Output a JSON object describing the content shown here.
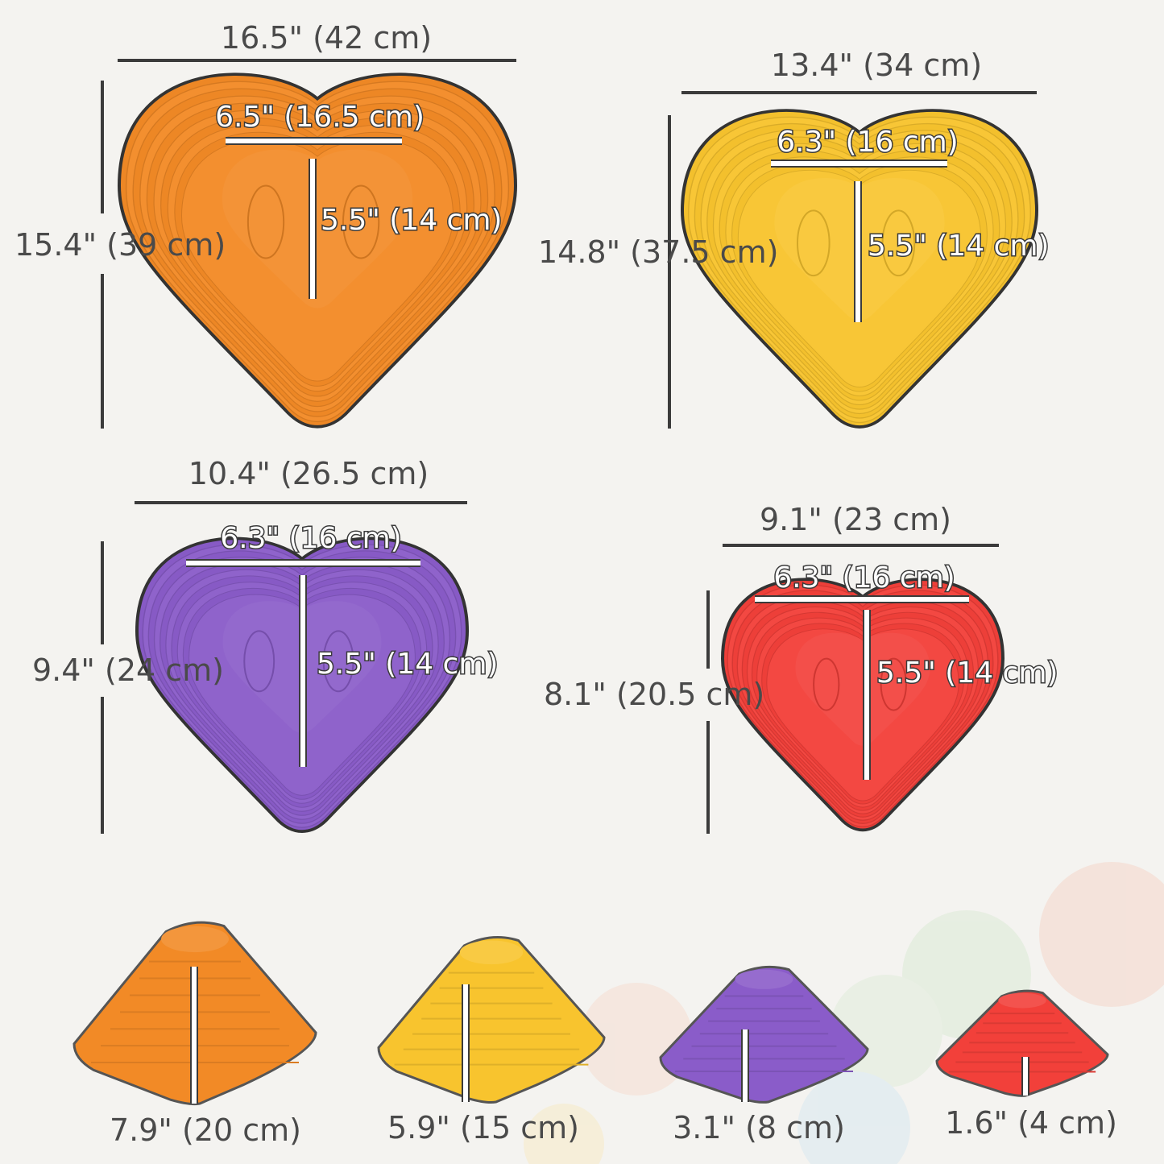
{
  "colors": {
    "orange": "#f28a26",
    "yellow": "#f8c42e",
    "purple": "#8a5cc9",
    "red": "#f2403a",
    "text": "#4a4a4a"
  },
  "stones": [
    {
      "color": "orange",
      "width": "16.5\" (42 cm)",
      "length": "15.4\" (39 cm)",
      "footpad_width": "6.5\" (16.5 cm)",
      "footpad_length": "5.5\" (14 cm)",
      "height": "7.9\" (20 cm)"
    },
    {
      "color": "yellow",
      "width": "13.4\" (34 cm)",
      "length": "14.8\" (37.5 cm)",
      "footpad_width": "6.3\" (16 cm)",
      "footpad_length": "5.5\" (14 cm)",
      "height": "5.9\" (15 cm)"
    },
    {
      "color": "purple",
      "width": "10.4\" (26.5 cm)",
      "length": "9.4\" (24 cm)",
      "footpad_width": "6.3\" (16 cm)",
      "footpad_length": "5.5\" (14 cm)",
      "height": "3.1\" (8 cm)"
    },
    {
      "color": "red",
      "width": "9.1\" (23 cm)",
      "length": "8.1\" (20.5 cm)",
      "footpad_width": "6.3\" (16 cm)",
      "footpad_length": "5.5\" (14 cm)",
      "height": "1.6\" (4 cm)"
    }
  ]
}
